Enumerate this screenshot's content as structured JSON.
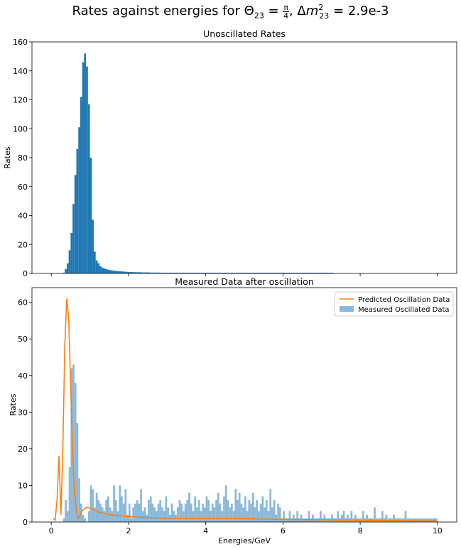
{
  "figure": {
    "title_prefix": "Rates against energies for ",
    "title_theta": "Θ",
    "title_theta_sub": "23",
    "title_eq": " = ",
    "title_frac_num": "π",
    "title_frac_den": "4",
    "title_comma": ", Δ",
    "title_m": "m",
    "title_m_sup": "2",
    "title_m_sub": "23",
    "title_value": " =  2.9e-3"
  },
  "chart_data": [
    {
      "type": "bar",
      "title": "Unoscillated Rates",
      "xlabel": "",
      "ylabel": "Rates",
      "xlim": [
        -0.5,
        10.5
      ],
      "ylim": [
        0,
        160
      ],
      "xticks": [
        0,
        2,
        4,
        6,
        8,
        10
      ],
      "xtick_labels_visible": false,
      "yticks": [
        0,
        20,
        40,
        60,
        80,
        100,
        120,
        140,
        160
      ],
      "bin_start": 0.0,
      "bin_width": 0.05,
      "color": "#1f77b4",
      "values": [
        0,
        0,
        0,
        0,
        0,
        0,
        0.5,
        3,
        7,
        16,
        28,
        48,
        68,
        86,
        101,
        122,
        146,
        152,
        143,
        117,
        80,
        37,
        15,
        9,
        7,
        5,
        4,
        3.5,
        3,
        2.6,
        2.3,
        2.1,
        1.9,
        1.8,
        1.6,
        1.5,
        1.4,
        1.3,
        1.2,
        1.1,
        1,
        1,
        0.9,
        0.9,
        0.8,
        0.8,
        0.8,
        0.7,
        0.7,
        0.7,
        0.7,
        0.6,
        0.6,
        0.6,
        0.6,
        0.6,
        0.5,
        0.5,
        0.5,
        0.5,
        0.5,
        0.5,
        0.5,
        0.5,
        0.5,
        0.5,
        0.5,
        0.5,
        0.5,
        0.5,
        0.5,
        0.5,
        0.5,
        0.5,
        0.5,
        0.5,
        0.5,
        0.5,
        0.5,
        0.5,
        0.5,
        0.5,
        0.5,
        0.5,
        0.5,
        0.5,
        0.5,
        0.5,
        0.5,
        0.5,
        0.5,
        0.5,
        0.5,
        0.5,
        0.5,
        0.5,
        0.5,
        0.5,
        0.5,
        0.5,
        0.5,
        0.5,
        0.5,
        0.5,
        0.5,
        0.5,
        0.5,
        0.5,
        0.5,
        0.5,
        0.5,
        0.5,
        0.5,
        0.5,
        0.5,
        0.5,
        0.5,
        0.5,
        0.5,
        0.5,
        0.5,
        0.5,
        0.5,
        0.5,
        0.5,
        0.5,
        0.5,
        0.5,
        0.5,
        0.5,
        0.5,
        0.5,
        0.5,
        0.5,
        0.5,
        0.5,
        0.5,
        0.5,
        0.5,
        0.5,
        0.5,
        0.5,
        0.5,
        0.5,
        0.5,
        0.5
      ]
    },
    {
      "type": "bar",
      "title": "Measured Data after oscillation",
      "xlabel": "Energies/GeV",
      "ylabel": "Rates",
      "xlim": [
        -0.5,
        10.5
      ],
      "ylim": [
        0,
        64
      ],
      "xticks": [
        0,
        2,
        4,
        6,
        8,
        10
      ],
      "yticks": [
        0,
        10,
        20,
        30,
        40,
        50,
        60
      ],
      "legend_position": "top-right",
      "bin_start": 0.0,
      "bin_width": 0.05,
      "bar_color": "#8bb8d9",
      "bar_series_name": "Measured Oscillated Data",
      "values": [
        0,
        0,
        0,
        0,
        0,
        0,
        1,
        6,
        3,
        15,
        42,
        43,
        38,
        27,
        12,
        5,
        2,
        1,
        0,
        3,
        10,
        9,
        4,
        8,
        6,
        5,
        4,
        3,
        6,
        7,
        4,
        3,
        10,
        6,
        3,
        10,
        7,
        5,
        9,
        2,
        5,
        1,
        4,
        5,
        6,
        5,
        9,
        3,
        4,
        2,
        6,
        7,
        5,
        4,
        3,
        5,
        6,
        4,
        3,
        7,
        4,
        2,
        5,
        3,
        2,
        4,
        6,
        5,
        3,
        5,
        6,
        8,
        5,
        3,
        7,
        4,
        6,
        3,
        5,
        4,
        7,
        6,
        3,
        5,
        4,
        6,
        8,
        5,
        3,
        7,
        10,
        6,
        4,
        5,
        3,
        9,
        6,
        8,
        5,
        4,
        7,
        3,
        6,
        5,
        8,
        4,
        6,
        3,
        5,
        7,
        4,
        6,
        3,
        9,
        4,
        6,
        2,
        5,
        4,
        1,
        3,
        1,
        1,
        3,
        1,
        2,
        1,
        3,
        1,
        2,
        1,
        1,
        1,
        3,
        1,
        2,
        1,
        1,
        1,
        3,
        1,
        2,
        1,
        1,
        1,
        2,
        1,
        1,
        3,
        1,
        2,
        3,
        1,
        2,
        1,
        3,
        1,
        2,
        1,
        1,
        1,
        3,
        1,
        2,
        1,
        1,
        1,
        4,
        1,
        1,
        1,
        3,
        1,
        2,
        1,
        1,
        1,
        2,
        1,
        1,
        1,
        1,
        1,
        3,
        1,
        1,
        1,
        1,
        1,
        1,
        1,
        1,
        1,
        1,
        1,
        1,
        1,
        1,
        1,
        1
      ],
      "line_series": {
        "name": "Predicted Oscillation Data",
        "color": "#ff7f0e",
        "x": [
          0.05,
          0.1,
          0.15,
          0.2,
          0.25,
          0.3,
          0.35,
          0.4,
          0.45,
          0.5,
          0.55,
          0.6,
          0.65,
          0.7,
          0.8,
          0.9,
          1.0,
          1.2,
          1.5,
          2.0,
          2.5,
          3.0,
          4.0,
          5.0,
          6.0,
          7.0,
          8.0,
          9.0,
          10.0
        ],
        "y": [
          1,
          0.5,
          6,
          18,
          2,
          20,
          48,
          61,
          56,
          38,
          20,
          8,
          3,
          1,
          3,
          4,
          3.8,
          2.8,
          2,
          1.5,
          1.2,
          1,
          1,
          0.9,
          0.7,
          0.6,
          0.5,
          0.4,
          0.3
        ]
      }
    }
  ]
}
